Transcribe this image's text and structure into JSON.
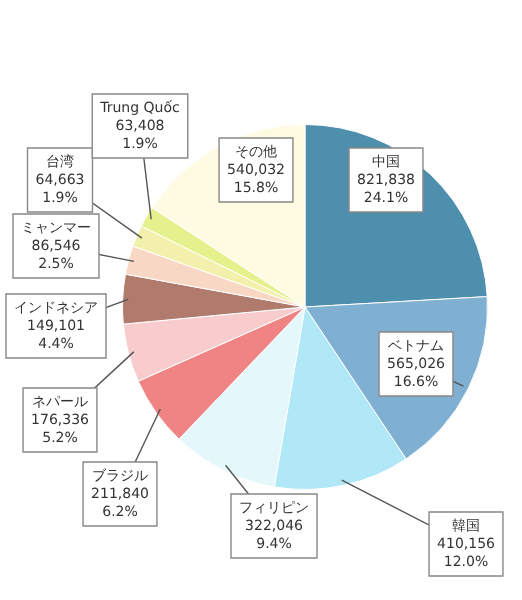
{
  "chart_data": {
    "type": "pie",
    "categories": [
      "中国",
      "ベトナム",
      "韓国",
      "フィリピン",
      "ブラジル",
      "ネパール",
      "インドネシア",
      "ミャンマー",
      "台湾",
      "Trung Quốc",
      "その他"
    ],
    "values": [
      821838,
      565026,
      410156,
      322046,
      211840,
      176336,
      149101,
      86546,
      64663,
      63408,
      540032
    ],
    "colors": [
      "#4f8fae",
      "#7fb0d2",
      "#b0e8f8",
      "#e4f8fc",
      "#f08484",
      "#f8cccc",
      "#b07a6c",
      "#f8d8c4",
      "#f2f0aa",
      "#e6f08c",
      "#fffbe2"
    ],
    "value_labels": [
      "821,838\n24.1%",
      "565,026\n16.6%",
      "410,156\n12.0%",
      "322,046\n9.4%",
      "211,840\n6.2%",
      "176,336\n5.2%",
      "149,101\n4.4%",
      "86,546\n2.5%",
      "64,663\n1.9%",
      "63,408\n1.9%",
      "540,032\n15.8%"
    ],
    "legend": false
  }
}
